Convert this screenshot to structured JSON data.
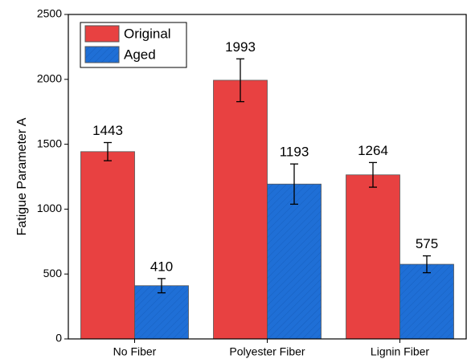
{
  "chart_data": {
    "type": "bar",
    "y_label": "Fatigue Parameter A",
    "categories": [
      "No Fiber",
      "Polyester Fiber",
      "Lignin Fiber"
    ],
    "series": [
      {
        "name": "Original",
        "color": "#e84141",
        "values": [
          1443,
          1993,
          1264
        ],
        "errors": [
          70,
          165,
          95
        ]
      },
      {
        "name": "Aged",
        "color": "#1f6fd6",
        "values": [
          410,
          1193,
          575
        ],
        "errors": [
          55,
          155,
          65
        ]
      }
    ],
    "ylim": [
      0,
      2500
    ],
    "yticks": [
      0,
      500,
      1000,
      1500,
      2000,
      2500
    ],
    "legend": "upper left",
    "grid": false
  }
}
